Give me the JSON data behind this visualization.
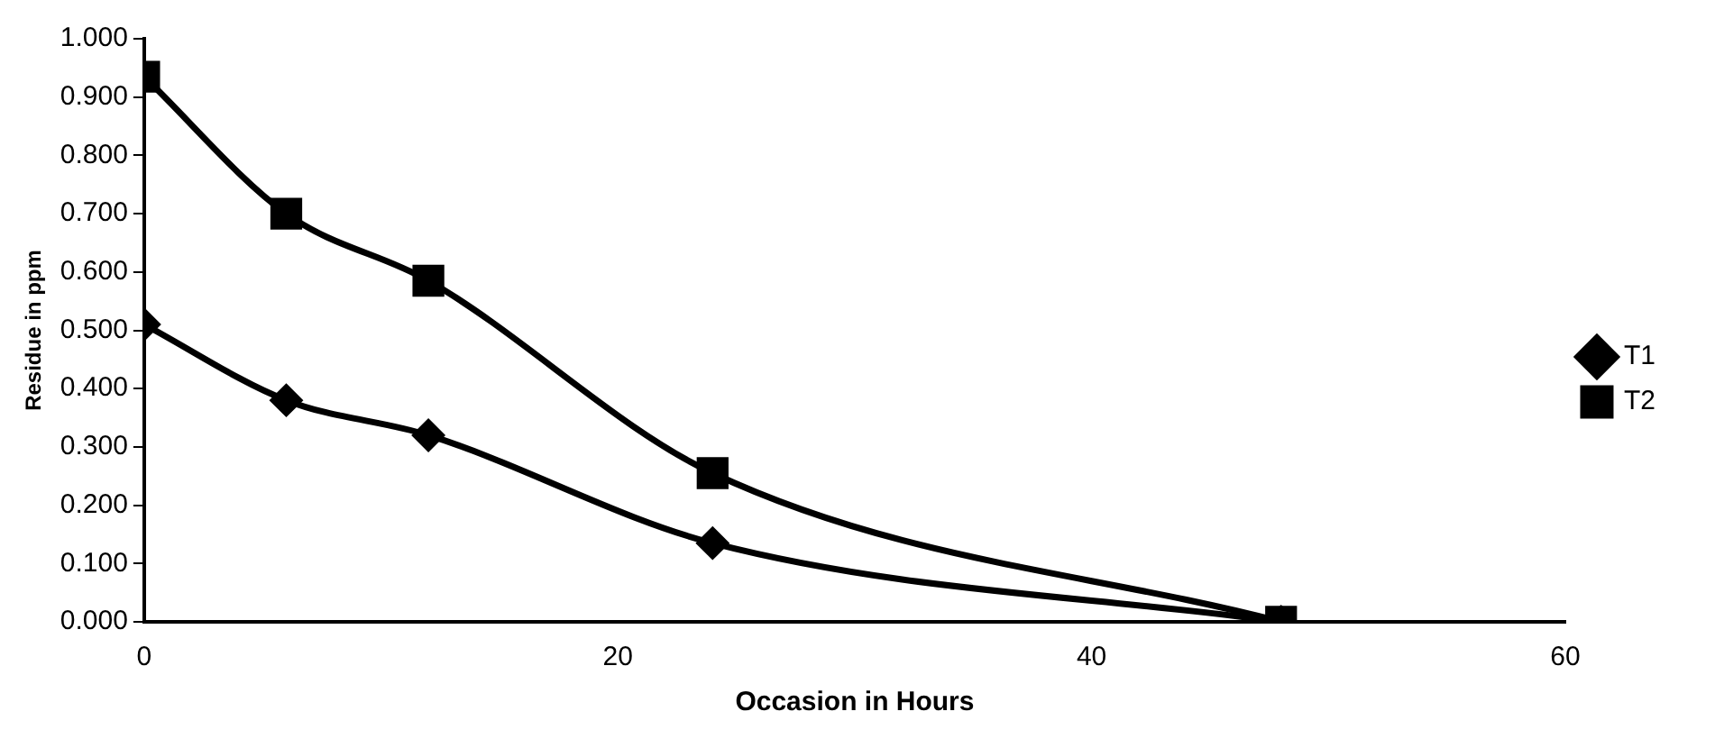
{
  "chart_data": {
    "type": "line",
    "xlabel": "Occasion in Hours",
    "ylabel": "Residue in ppm",
    "x": [
      0,
      6,
      12,
      24,
      48
    ],
    "series": [
      {
        "name": "T1",
        "color": "#000000",
        "marker": "diamond",
        "values": [
          0.51,
          0.38,
          0.32,
          0.135,
          0.0
        ]
      },
      {
        "name": "T2",
        "color": "#000000",
        "marker": "square",
        "values": [
          0.935,
          0.7,
          0.585,
          0.255,
          0.0
        ]
      }
    ],
    "xlim": [
      0,
      60
    ],
    "xticks": [
      0,
      20,
      40,
      60
    ],
    "ylim": [
      0,
      1
    ],
    "yticks": [
      {
        "value": 0,
        "label": "0.000"
      },
      {
        "value": 0.1,
        "label": "0.100"
      },
      {
        "value": 0.2,
        "label": "0.200"
      },
      {
        "value": 0.3,
        "label": "0.300"
      },
      {
        "value": 0.4,
        "label": "0.400"
      },
      {
        "value": 0.5,
        "label": "0.500"
      },
      {
        "value": 0.6,
        "label": "0.600"
      },
      {
        "value": 0.7,
        "label": "0.700"
      },
      {
        "value": 0.8,
        "label": "0.800"
      },
      {
        "value": 0.9,
        "label": "0.900"
      },
      {
        "value": 1,
        "label": "1.000"
      }
    ],
    "grid": false,
    "legend": "right",
    "line_style": "solid"
  }
}
